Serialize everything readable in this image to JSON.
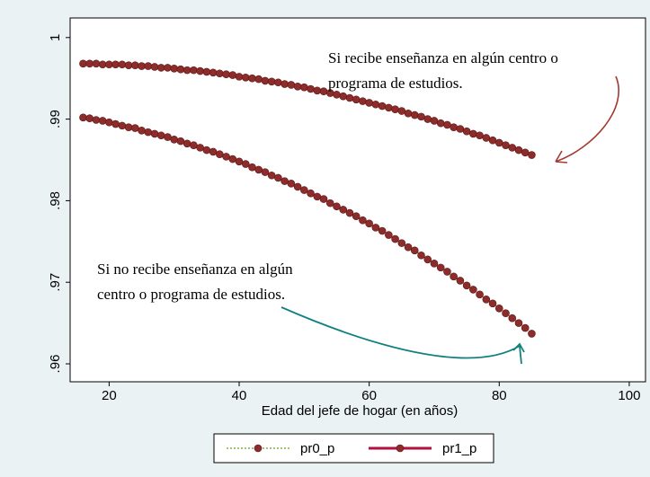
{
  "chart_data": {
    "type": "line",
    "x_label": "Edad del jefe de hogar (en años)",
    "x": [
      16,
      17,
      18,
      19,
      20,
      21,
      22,
      23,
      24,
      25,
      26,
      27,
      28,
      29,
      30,
      31,
      32,
      33,
      34,
      35,
      36,
      37,
      38,
      39,
      40,
      41,
      42,
      43,
      44,
      45,
      46,
      47,
      48,
      49,
      50,
      51,
      52,
      53,
      54,
      55,
      56,
      57,
      58,
      59,
      60,
      61,
      62,
      63,
      64,
      65,
      66,
      67,
      68,
      69,
      70,
      71,
      72,
      73,
      74,
      75,
      76,
      77,
      78,
      79,
      80,
      81,
      82,
      83,
      84,
      85
    ],
    "series": [
      {
        "name": "pr0_p",
        "color": "#7fb04a",
        "marker_color": "#8e2b2b",
        "line_style": "dotted",
        "values": [
          0.9902,
          0.9901,
          0.9899,
          0.9898,
          0.9896,
          0.9894,
          0.9892,
          0.989,
          0.9889,
          0.9886,
          0.9884,
          0.9882,
          0.988,
          0.9878,
          0.9875,
          0.9873,
          0.987,
          0.9868,
          0.9865,
          0.9862,
          0.986,
          0.9857,
          0.9854,
          0.9851,
          0.9848,
          0.9845,
          0.9841,
          0.9838,
          0.9835,
          0.9831,
          0.9828,
          0.9824,
          0.9821,
          0.9817,
          0.9813,
          0.9809,
          0.9805,
          0.9802,
          0.9797,
          0.9793,
          0.9789,
          0.9785,
          0.9781,
          0.9776,
          0.9772,
          0.9767,
          0.9763,
          0.9758,
          0.9753,
          0.9748,
          0.9743,
          0.9739,
          0.9733,
          0.9728,
          0.9723,
          0.9718,
          0.9713,
          0.9707,
          0.9702,
          0.9696,
          0.9691,
          0.9685,
          0.9679,
          0.9674,
          0.9668,
          0.9662,
          0.9656,
          0.965,
          0.9644,
          0.9637
        ]
      },
      {
        "name": "pr1_p",
        "color": "#b3123e",
        "marker_color": "#8e2b2b",
        "line_style": "solid",
        "values": [
          0.9968,
          0.9968,
          0.9968,
          0.9967,
          0.9967,
          0.9967,
          0.9967,
          0.9966,
          0.9966,
          0.9965,
          0.9965,
          0.9964,
          0.9963,
          0.9963,
          0.9962,
          0.9961,
          0.996,
          0.996,
          0.9959,
          0.9958,
          0.9957,
          0.9956,
          0.9955,
          0.9954,
          0.9952,
          0.9951,
          0.995,
          0.9949,
          0.9947,
          0.9946,
          0.9945,
          0.9943,
          0.9942,
          0.994,
          0.9939,
          0.9937,
          0.9935,
          0.9934,
          0.9932,
          0.993,
          0.9928,
          0.9926,
          0.9924,
          0.9922,
          0.992,
          0.9918,
          0.9916,
          0.9914,
          0.9912,
          0.991,
          0.9907,
          0.9905,
          0.9903,
          0.99,
          0.9898,
          0.9895,
          0.9893,
          0.989,
          0.9888,
          0.9885,
          0.9882,
          0.988,
          0.9877,
          0.9874,
          0.9871,
          0.9868,
          0.9865,
          0.9862,
          0.9859,
          0.9856
        ]
      }
    ],
    "xlim": [
      14,
      102.5
    ],
    "xticks": [
      20,
      40,
      60,
      80,
      100
    ],
    "ylim": [
      0.9578,
      1.0024
    ],
    "yticks": [
      {
        "value": 0.96,
        "label": ".96"
      },
      {
        "value": 0.97,
        "label": ".97"
      },
      {
        "value": 0.98,
        "label": ".98"
      },
      {
        "value": 0.99,
        "label": ".99"
      },
      1
    ],
    "grid": false,
    "legend": "bottom",
    "annotations": [
      [
        "Si recibe enseñanza en algún centro o",
        "programa de estudios."
      ],
      [
        "Si no recibe enseñanza en algún",
        "centro o programa de estudios."
      ]
    ]
  }
}
